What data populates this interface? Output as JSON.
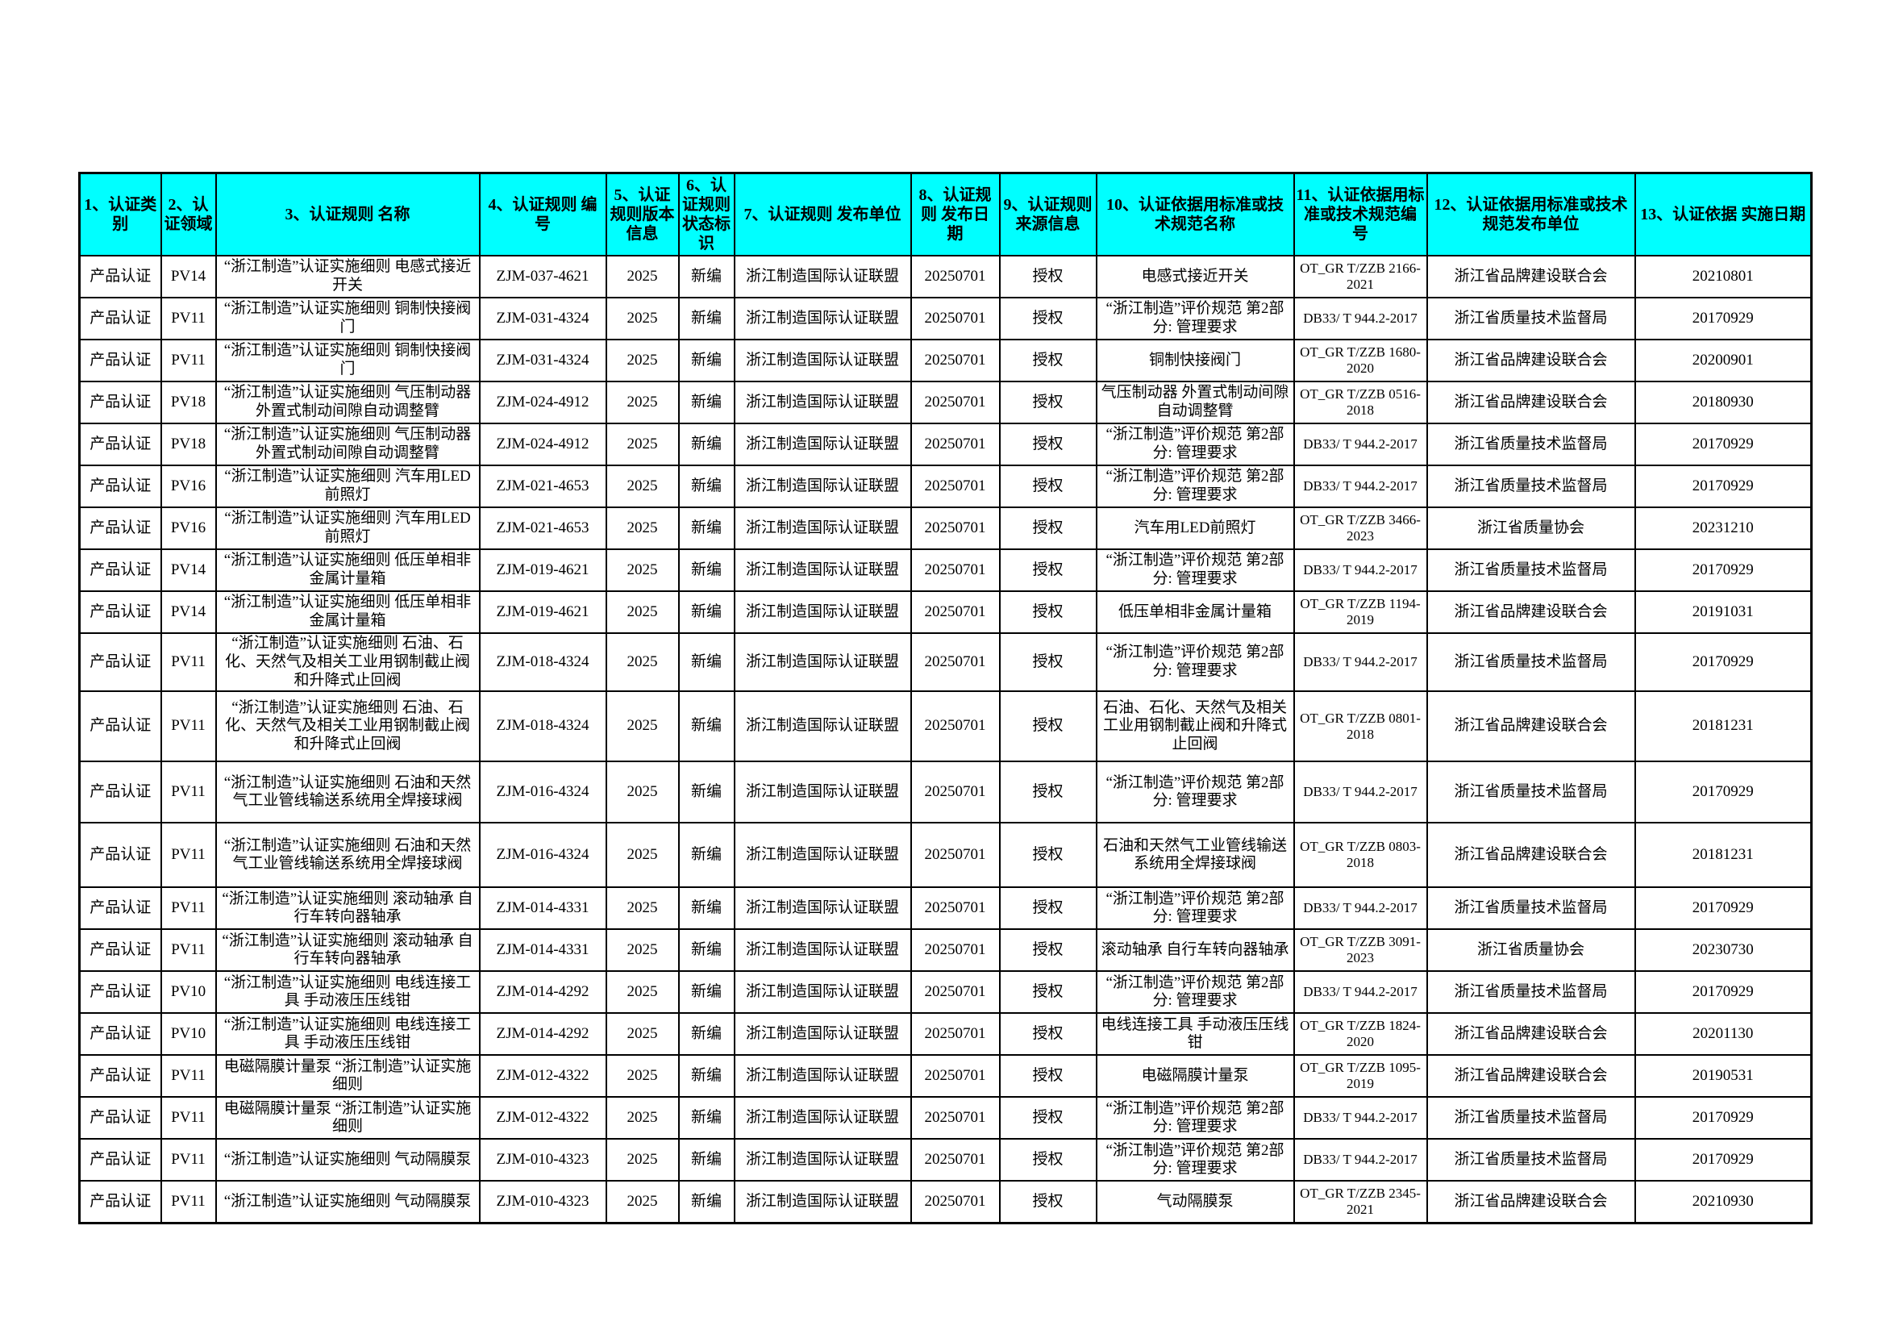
{
  "table": {
    "header_bg": "#00ffff",
    "border_color": "#000000",
    "headers": [
      "1、认证类别",
      "2、认证领域",
      "3、认证规则 名称",
      "4、认证规则 编号",
      "5、认证规则版本信息",
      "6、认证规则 状态标识",
      "7、认证规则 发布单位",
      "8、认证规则 发布日期",
      "9、认证规则 来源信息",
      "10、认证依据用标准或技术规范名称",
      "11、认证依据用标准或技术规范编号",
      "12、认证依据用标准或技术规范发布单位",
      "13、认证依据 实施日期"
    ],
    "rows": [
      [
        "产品认证",
        "PV14",
        "“浙江制造”认证实施细则 电感式接近开关",
        "ZJM-037-4621",
        "2025",
        "新编",
        "浙江制造国际认证联盟",
        "20250701",
        "授权",
        "电感式接近开关",
        "OT_GR T/ZZB 2166-2021",
        "浙江省品牌建设联合会",
        "20210801"
      ],
      [
        "产品认证",
        "PV11",
        "“浙江制造”认证实施细则 铜制快接阀门",
        "ZJM-031-4324",
        "2025",
        "新编",
        "浙江制造国际认证联盟",
        "20250701",
        "授权",
        "“浙江制造”评价规范 第2部分: 管理要求",
        "DB33/ T 944.2-2017",
        "浙江省质量技术监督局",
        "20170929"
      ],
      [
        "产品认证",
        "PV11",
        "“浙江制造”认证实施细则 铜制快接阀门",
        "ZJM-031-4324",
        "2025",
        "新编",
        "浙江制造国际认证联盟",
        "20250701",
        "授权",
        "铜制快接阀门",
        "OT_GR T/ZZB 1680-2020",
        "浙江省品牌建设联合会",
        "20200901"
      ],
      [
        "产品认证",
        "PV18",
        "“浙江制造”认证实施细则 气压制动器 外置式制动间隙自动调整臂",
        "ZJM-024-4912",
        "2025",
        "新编",
        "浙江制造国际认证联盟",
        "20250701",
        "授权",
        "气压制动器 外置式制动间隙自动调整臂",
        "OT_GR T/ZZB 0516-2018",
        "浙江省品牌建设联合会",
        "20180930"
      ],
      [
        "产品认证",
        "PV18",
        "“浙江制造”认证实施细则 气压制动器 外置式制动间隙自动调整臂",
        "ZJM-024-4912",
        "2025",
        "新编",
        "浙江制造国际认证联盟",
        "20250701",
        "授权",
        "“浙江制造”评价规范 第2部分: 管理要求",
        "DB33/ T 944.2-2017",
        "浙江省质量技术监督局",
        "20170929"
      ],
      [
        "产品认证",
        "PV16",
        "“浙江制造”认证实施细则 汽车用LED前照灯",
        "ZJM-021-4653",
        "2025",
        "新编",
        "浙江制造国际认证联盟",
        "20250701",
        "授权",
        "“浙江制造”评价规范 第2部分: 管理要求",
        "DB33/ T 944.2-2017",
        "浙江省质量技术监督局",
        "20170929"
      ],
      [
        "产品认证",
        "PV16",
        "“浙江制造”认证实施细则 汽车用LED前照灯",
        "ZJM-021-4653",
        "2025",
        "新编",
        "浙江制造国际认证联盟",
        "20250701",
        "授权",
        "汽车用LED前照灯",
        "OT_GR T/ZZB 3466-2023",
        "浙江省质量协会",
        "20231210"
      ],
      [
        "产品认证",
        "PV14",
        "“浙江制造”认证实施细则 低压单相非金属计量箱",
        "ZJM-019-4621",
        "2025",
        "新编",
        "浙江制造国际认证联盟",
        "20250701",
        "授权",
        "“浙江制造”评价规范 第2部分: 管理要求",
        "DB33/ T 944.2-2017",
        "浙江省质量技术监督局",
        "20170929"
      ],
      [
        "产品认证",
        "PV14",
        "“浙江制造”认证实施细则 低压单相非金属计量箱",
        "ZJM-019-4621",
        "2025",
        "新编",
        "浙江制造国际认证联盟",
        "20250701",
        "授权",
        "低压单相非金属计量箱",
        "OT_GR T/ZZB 1194-2019",
        "浙江省品牌建设联合会",
        "20191031"
      ],
      [
        "产品认证",
        "PV11",
        "“浙江制造”认证实施细则 石油、石化、天然气及相关工业用钢制截止阀和升降式止回阀",
        "ZJM-018-4324",
        "2025",
        "新编",
        "浙江制造国际认证联盟",
        "20250701",
        "授权",
        "“浙江制造”评价规范 第2部分: 管理要求",
        "DB33/ T 944.2-2017",
        "浙江省质量技术监督局",
        "20170929"
      ],
      [
        "产品认证",
        "PV11",
        "“浙江制造”认证实施细则 石油、石化、天然气及相关工业用钢制截止阀和升降式止回阀",
        "ZJM-018-4324",
        "2025",
        "新编",
        "浙江制造国际认证联盟",
        "20250701",
        "授权",
        "石油、石化、天然气及相关工业用钢制截止阀和升降式止回阀",
        "OT_GR T/ZZB 0801-2018",
        "浙江省品牌建设联合会",
        "20181231"
      ],
      [
        "产品认证",
        "PV11",
        "“浙江制造”认证实施细则 石油和天然气工业管线输送系统用全焊接球阀",
        "ZJM-016-4324",
        "2025",
        "新编",
        "浙江制造国际认证联盟",
        "20250701",
        "授权",
        "“浙江制造”评价规范 第2部分: 管理要求",
        "DB33/ T 944.2-2017",
        "浙江省质量技术监督局",
        "20170929"
      ],
      [
        "产品认证",
        "PV11",
        "“浙江制造”认证实施细则 石油和天然气工业管线输送系统用全焊接球阀",
        "ZJM-016-4324",
        "2025",
        "新编",
        "浙江制造国际认证联盟",
        "20250701",
        "授权",
        "石油和天然气工业管线输送系统用全焊接球阀",
        "OT_GR T/ZZB 0803-2018",
        "浙江省品牌建设联合会",
        "20181231"
      ],
      [
        "产品认证",
        "PV11",
        "“浙江制造”认证实施细则 滚动轴承 自行车转向器轴承",
        "ZJM-014-4331",
        "2025",
        "新编",
        "浙江制造国际认证联盟",
        "20250701",
        "授权",
        "“浙江制造”评价规范 第2部分: 管理要求",
        "DB33/ T 944.2-2017",
        "浙江省质量技术监督局",
        "20170929"
      ],
      [
        "产品认证",
        "PV11",
        "“浙江制造”认证实施细则 滚动轴承 自行车转向器轴承",
        "ZJM-014-4331",
        "2025",
        "新编",
        "浙江制造国际认证联盟",
        "20250701",
        "授权",
        "滚动轴承 自行车转向器轴承",
        "OT_GR T/ZZB 3091-2023",
        "浙江省质量协会",
        "20230730"
      ],
      [
        "产品认证",
        "PV10",
        "“浙江制造”认证实施细则 电线连接工具 手动液压压线钳",
        "ZJM-014-4292",
        "2025",
        "新编",
        "浙江制造国际认证联盟",
        "20250701",
        "授权",
        "“浙江制造”评价规范 第2部分: 管理要求",
        "DB33/ T 944.2-2017",
        "浙江省质量技术监督局",
        "20170929"
      ],
      [
        "产品认证",
        "PV10",
        "“浙江制造”认证实施细则 电线连接工具 手动液压压线钳",
        "ZJM-014-4292",
        "2025",
        "新编",
        "浙江制造国际认证联盟",
        "20250701",
        "授权",
        "电线连接工具 手动液压压线钳",
        "OT_GR T/ZZB 1824-2020",
        "浙江省品牌建设联合会",
        "20201130"
      ],
      [
        "产品认证",
        "PV11",
        "电磁隔膜计量泵 “浙江制造”认证实施细则",
        "ZJM-012-4322",
        "2025",
        "新编",
        "浙江制造国际认证联盟",
        "20250701",
        "授权",
        "电磁隔膜计量泵",
        "OT_GR T/ZZB 1095-2019",
        "浙江省品牌建设联合会",
        "20190531"
      ],
      [
        "产品认证",
        "PV11",
        "电磁隔膜计量泵 “浙江制造”认证实施细则",
        "ZJM-012-4322",
        "2025",
        "新编",
        "浙江制造国际认证联盟",
        "20250701",
        "授权",
        "“浙江制造”评价规范 第2部分: 管理要求",
        "DB33/ T 944.2-2017",
        "浙江省质量技术监督局",
        "20170929"
      ],
      [
        "产品认证",
        "PV11",
        "“浙江制造”认证实施细则 气动隔膜泵",
        "ZJM-010-4323",
        "2025",
        "新编",
        "浙江制造国际认证联盟",
        "20250701",
        "授权",
        "“浙江制造”评价规范 第2部分: 管理要求",
        "DB33/ T 944.2-2017",
        "浙江省质量技术监督局",
        "20170929"
      ],
      [
        "产品认证",
        "PV11",
        "“浙江制造”认证实施细则 气动隔膜泵",
        "ZJM-010-4323",
        "2025",
        "新编",
        "浙江制造国际认证联盟",
        "20250701",
        "授权",
        "气动隔膜泵",
        "OT_GR T/ZZB 2345-2021",
        "浙江省品牌建设联合会",
        "20210930"
      ]
    ]
  }
}
